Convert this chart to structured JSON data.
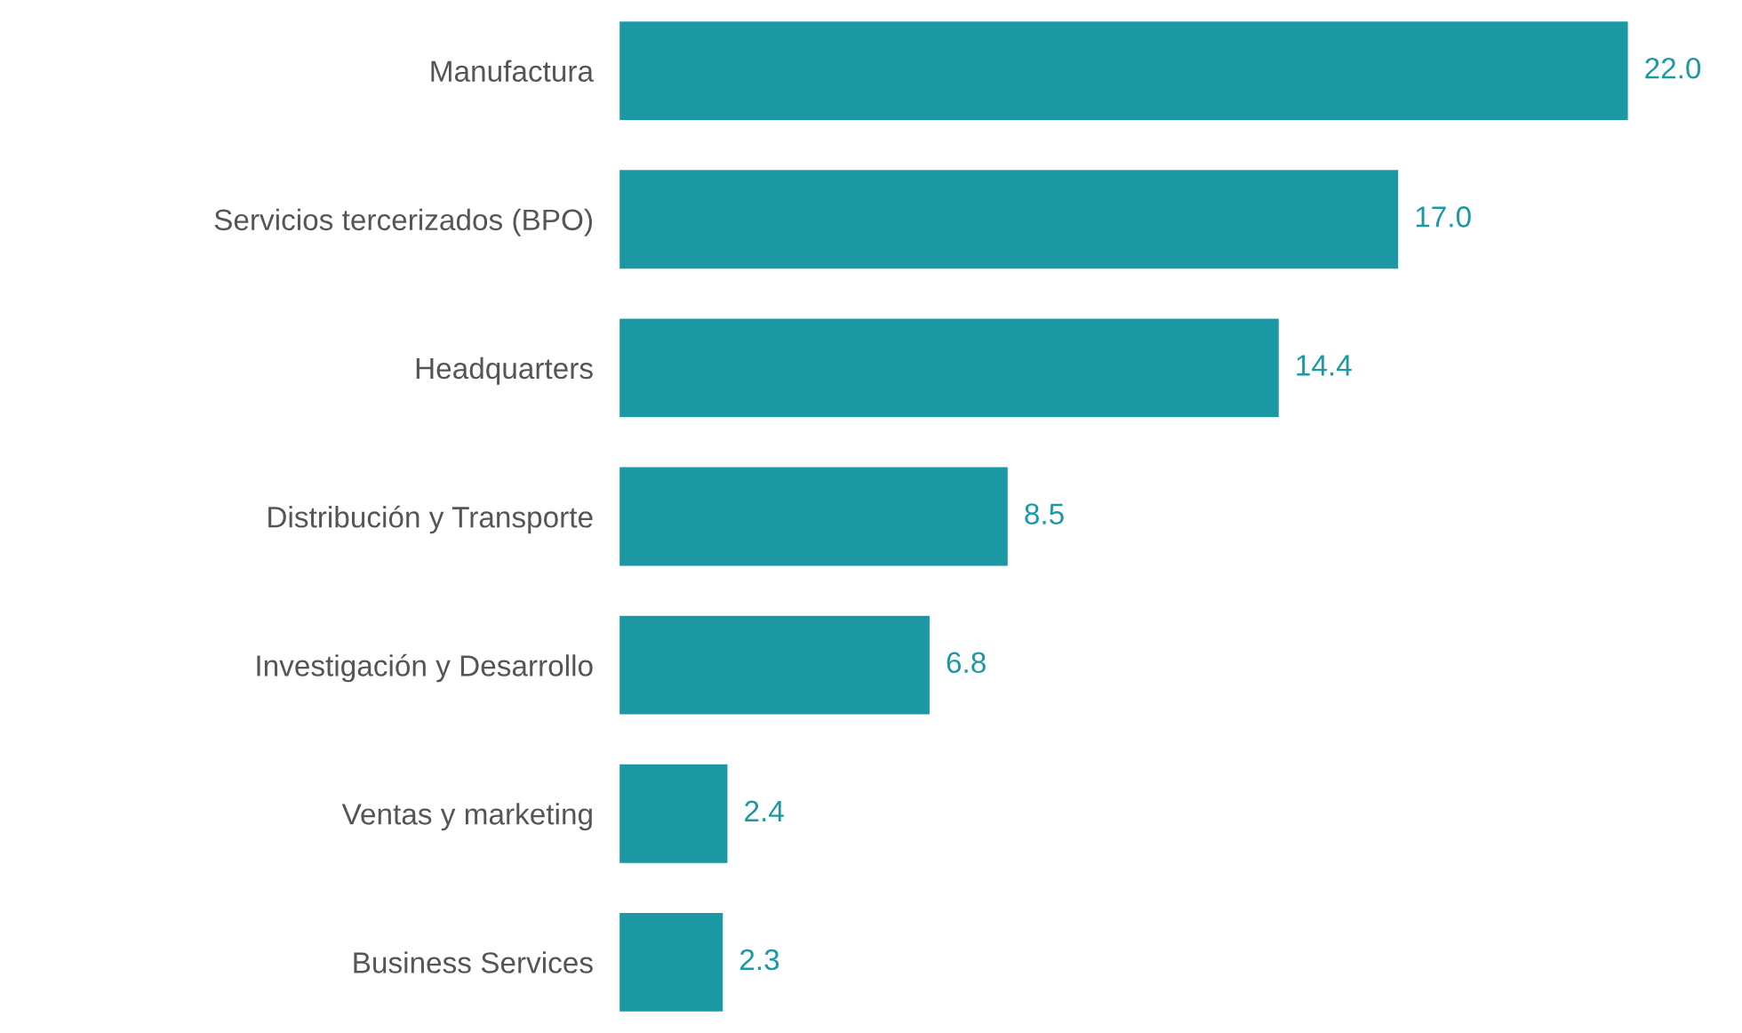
{
  "chart_data": {
    "type": "bar",
    "orientation": "horizontal",
    "categories": [
      "Manufactura",
      "Servicios tercerizados (BPO)",
      "Headquarters",
      "Distribución y Transporte",
      "Investigación y Desarrollo",
      "Ventas y marketing",
      "Business Services"
    ],
    "values": [
      22.0,
      17.0,
      14.4,
      8.5,
      6.8,
      2.4,
      2.3
    ],
    "value_labels": [
      "22.0",
      "17.0",
      "14.4",
      "8.5",
      "6.8",
      "2.4",
      "2.3"
    ],
    "color": "#1b98a3",
    "grid": false,
    "legend": false
  }
}
